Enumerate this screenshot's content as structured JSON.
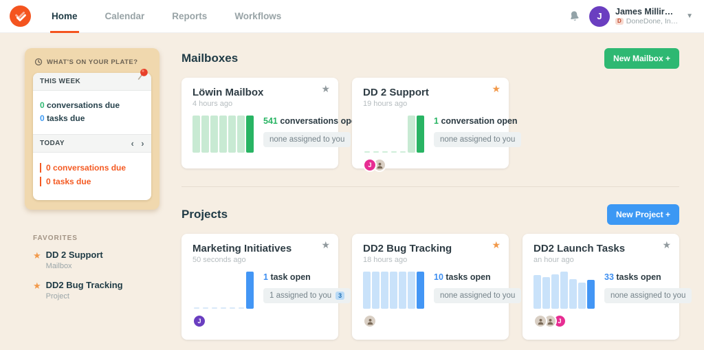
{
  "colors": {
    "orange": "#f4541f",
    "todayorange": "#f45a22",
    "green": "#2eb872",
    "blue": "#3c98f4",
    "lightgreen": "#c8ead3",
    "darkgreen": "#28b463",
    "dashgreen": "#cfeeda",
    "lightblue": "#c9e2fa",
    "darkblue": "#4396f5",
    "dashblue": "#d8e8f9",
    "starorange": "#f2994a",
    "pink": "#e72d92",
    "purple": "#6a3ec0",
    "dark": "#2b3a42",
    "cream": "#f6eee3",
    "tan": "#f0d8ae"
  },
  "nav": {
    "items": [
      {
        "label": "Home",
        "active": true
      },
      {
        "label": "Calendar"
      },
      {
        "label": "Reports"
      },
      {
        "label": "Workflows"
      }
    ],
    "user": {
      "name": "James Millir…",
      "org": "DoneDone, In…",
      "avatar_initial": "J",
      "org_badge": "D"
    }
  },
  "sidebar": {
    "plate": {
      "title": "WHAT'S ON YOUR PLATE?",
      "this_week": {
        "label": "THIS WEEK",
        "items": [
          {
            "count": "0",
            "label": "conversations due"
          },
          {
            "count": "0",
            "label": "tasks due"
          }
        ]
      },
      "today": {
        "label": "TODAY",
        "prev": "‹",
        "next": "›",
        "items": [
          {
            "count": "0",
            "label": "conversations due"
          },
          {
            "count": "0",
            "label": "tasks due"
          }
        ]
      }
    },
    "favorites": {
      "title": "FAVORITES",
      "items": [
        {
          "name": "DD 2 Support",
          "type": "Mailbox"
        },
        {
          "name": "DD2 Bug Tracking",
          "type": "Project"
        }
      ]
    }
  },
  "mailboxes": {
    "heading": "Mailboxes",
    "new_button": "New Mailbox +",
    "cards": [
      {
        "title": "Löwin Mailbox",
        "time": "4 hours ago",
        "starred": false,
        "count": "541",
        "count_label": "conversations open",
        "pill": "none assigned to you",
        "chart": {
          "bars": [
            {
              "h": 100,
              "style": "light-green"
            },
            {
              "h": 100,
              "style": "light-green"
            },
            {
              "h": 100,
              "style": "light-green"
            },
            {
              "h": 100,
              "style": "light-green"
            },
            {
              "h": 100,
              "style": "light-green"
            },
            {
              "h": 100,
              "style": "light-green"
            },
            {
              "h": 100,
              "style": "dark-green"
            }
          ]
        },
        "avatars": []
      },
      {
        "title": "DD 2 Support",
        "time": "19 hours ago",
        "starred": true,
        "count": "1",
        "count_label": "conversation open",
        "pill": "none assigned to you",
        "chart": {
          "bars": [
            {
              "h": 4,
              "style": "dash-green"
            },
            {
              "h": 4,
              "style": "dash-green"
            },
            {
              "h": 4,
              "style": "dash-green"
            },
            {
              "h": 4,
              "style": "dash-green"
            },
            {
              "h": 4,
              "style": "dash-green"
            },
            {
              "h": 100,
              "style": "light-green"
            },
            {
              "h": 100,
              "style": "dark-green"
            }
          ]
        },
        "avatars": [
          {
            "kind": "initial",
            "initial": "J",
            "bg": "pink"
          },
          {
            "kind": "photo"
          }
        ]
      }
    ]
  },
  "projects": {
    "heading": "Projects",
    "new_button": "New Project +",
    "cards": [
      {
        "title": "Marketing Initiatives",
        "time": "50 seconds ago",
        "starred": false,
        "count": "1",
        "count_label": "task open",
        "pill": "1 assigned to you",
        "pill_badge": "3",
        "chart": {
          "bars": [
            {
              "h": 4,
              "style": "dash-blue"
            },
            {
              "h": 4,
              "style": "dash-blue"
            },
            {
              "h": 4,
              "style": "dash-blue"
            },
            {
              "h": 4,
              "style": "dash-blue"
            },
            {
              "h": 4,
              "style": "dash-blue"
            },
            {
              "h": 4,
              "style": "dash-blue"
            },
            {
              "h": 100,
              "style": "dark-blue"
            }
          ]
        },
        "avatars": [
          {
            "kind": "initial",
            "initial": "J",
            "bg": "purple"
          }
        ]
      },
      {
        "title": "DD2 Bug Tracking",
        "time": "18 hours ago",
        "starred": true,
        "count": "10",
        "count_label": "tasks open",
        "pill": "none assigned to you",
        "chart": {
          "bars": [
            {
              "h": 100,
              "style": "light-blue"
            },
            {
              "h": 100,
              "style": "light-blue"
            },
            {
              "h": 100,
              "style": "light-blue"
            },
            {
              "h": 100,
              "style": "light-blue"
            },
            {
              "h": 100,
              "style": "light-blue"
            },
            {
              "h": 100,
              "style": "light-blue"
            },
            {
              "h": 100,
              "style": "dark-blue"
            }
          ]
        },
        "avatars": [
          {
            "kind": "photo"
          }
        ]
      },
      {
        "title": "DD2 Launch Tasks",
        "time": "an hour ago",
        "starred": false,
        "count": "33",
        "count_label": "tasks open",
        "pill": "none assigned to you",
        "chart": {
          "bars": [
            {
              "h": 90,
              "style": "light-blue"
            },
            {
              "h": 85,
              "style": "light-blue"
            },
            {
              "h": 93,
              "style": "light-blue"
            },
            {
              "h": 100,
              "style": "light-blue"
            },
            {
              "h": 79,
              "style": "light-blue"
            },
            {
              "h": 70,
              "style": "light-blue"
            },
            {
              "h": 78,
              "style": "dark-blue"
            }
          ]
        },
        "avatars": [
          {
            "kind": "photo"
          },
          {
            "kind": "photo"
          },
          {
            "kind": "initial",
            "initial": "J",
            "bg": "pink"
          }
        ]
      }
    ]
  }
}
